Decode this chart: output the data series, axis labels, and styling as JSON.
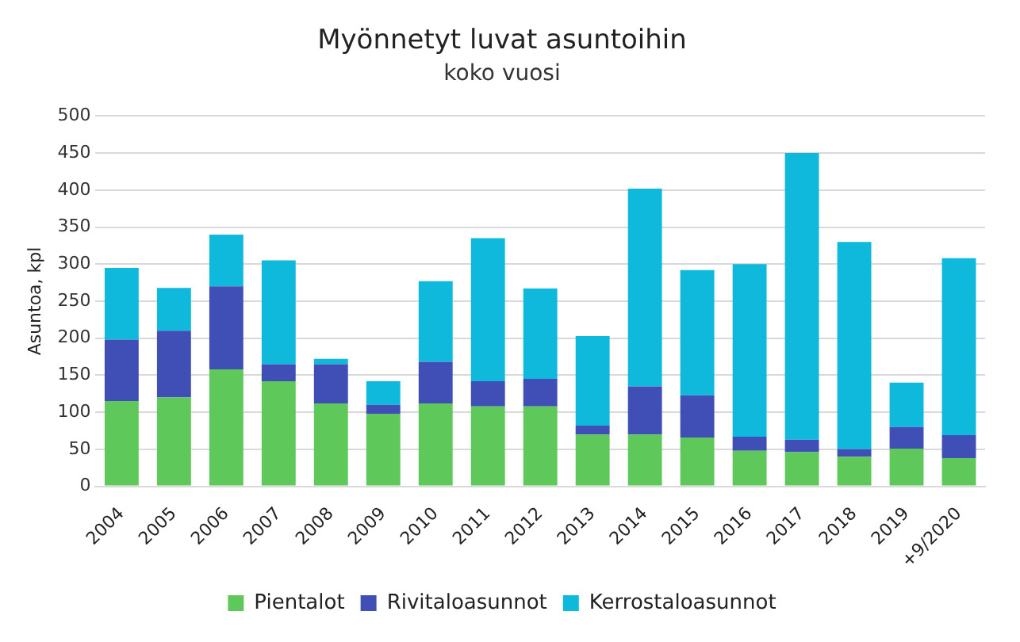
{
  "chart_data": {
    "type": "bar",
    "title": "Myönnetyt luvat asuntoihin",
    "subtitle": "koko vuosi",
    "ylabel": "Asuntoa, kpl",
    "categories": [
      "2004",
      "2005",
      "2006",
      "2007",
      "2008",
      "2009",
      "2010",
      "2011",
      "2012",
      "2013",
      "2014",
      "2015",
      "2016",
      "2017",
      "2018",
      "2019",
      "+9/2020"
    ],
    "stacked": true,
    "ylim": [
      0,
      500
    ],
    "yticks": [
      0,
      50,
      100,
      150,
      200,
      250,
      300,
      350,
      400,
      450,
      500
    ],
    "grid": "y",
    "legend": "bottom",
    "series": [
      {
        "name": "Pientalot",
        "color": "#5ec95a",
        "values": [
          115,
          120,
          158,
          142,
          112,
          98,
          112,
          108,
          108,
          70,
          70,
          66,
          48,
          46,
          40,
          51,
          38
        ]
      },
      {
        "name": "Rivitaloasunnot",
        "color": "#3f4fb5",
        "values": [
          83,
          90,
          112,
          23,
          53,
          12,
          56,
          34,
          37,
          12,
          65,
          57,
          19,
          17,
          10,
          29,
          31
        ]
      },
      {
        "name": "Kerrostaloasunnot",
        "color": "#0fb9dc",
        "values": [
          97,
          58,
          70,
          140,
          7,
          32,
          109,
          193,
          122,
          121,
          267,
          169,
          233,
          387,
          280,
          60,
          239
        ]
      }
    ]
  }
}
